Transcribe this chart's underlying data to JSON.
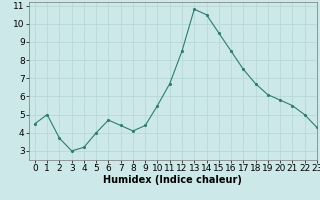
{
  "x": [
    0,
    1,
    2,
    3,
    4,
    5,
    6,
    7,
    8,
    9,
    10,
    11,
    12,
    13,
    14,
    15,
    16,
    17,
    18,
    19,
    20,
    21,
    22,
    23
  ],
  "y": [
    4.5,
    5.0,
    3.7,
    3.0,
    3.2,
    4.0,
    4.7,
    4.4,
    4.1,
    4.4,
    5.5,
    6.7,
    8.5,
    10.8,
    10.5,
    9.5,
    8.5,
    7.5,
    6.7,
    6.1,
    5.8,
    5.5,
    5.0,
    4.3
  ],
  "xlabel": "Humidex (Indice chaleur)",
  "xlim": [
    -0.5,
    23
  ],
  "ylim": [
    2.5,
    11.2
  ],
  "yticks": [
    3,
    4,
    5,
    6,
    7,
    8,
    9,
    10,
    11
  ],
  "xticks": [
    0,
    1,
    2,
    3,
    4,
    5,
    6,
    7,
    8,
    9,
    10,
    11,
    12,
    13,
    14,
    15,
    16,
    17,
    18,
    19,
    20,
    21,
    22,
    23
  ],
  "line_color": "#2e7d6e",
  "marker_color": "#2e7d6e",
  "bg_color": "#cce8e8",
  "grid_color": "#b8d8d8",
  "xlabel_fontsize": 7,
  "tick_fontsize": 6.5
}
